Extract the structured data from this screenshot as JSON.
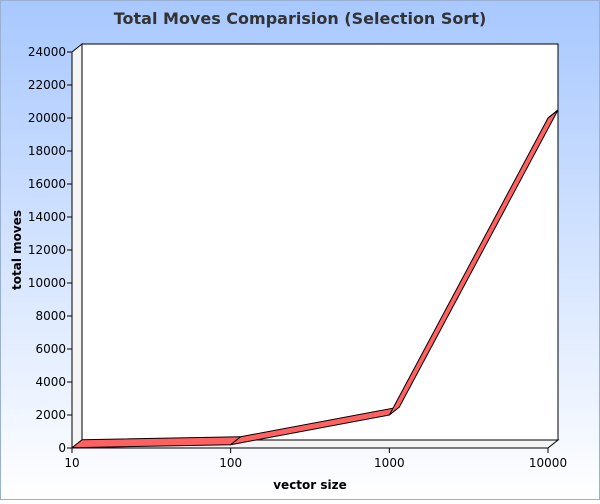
{
  "chart_data": {
    "type": "line",
    "title": "Total Moves Comparision (Selection Sort)",
    "xlabel": "vector size",
    "ylabel": "total moves",
    "x_scale": "log",
    "x": [
      10,
      100,
      1000,
      10000
    ],
    "x_tick_labels": [
      "10",
      "100",
      "1000",
      "10000"
    ],
    "ylim": [
      0,
      24000
    ],
    "y_ticks": [
      0,
      2000,
      4000,
      6000,
      8000,
      10000,
      12000,
      14000,
      16000,
      18000,
      20000,
      22000,
      24000
    ],
    "series": [
      {
        "values": [
          18,
          198,
          1998,
          19998
        ]
      }
    ],
    "grid": false,
    "style": "3d",
    "colors": {
      "line_top": "#ff6060",
      "line_side": "#7a1a1a",
      "line_stroke": "#000000",
      "background_top": "#a8c8ff",
      "background_bottom": "#ffffff",
      "plot_area": "#ffffff",
      "title_text": "#333333"
    }
  }
}
